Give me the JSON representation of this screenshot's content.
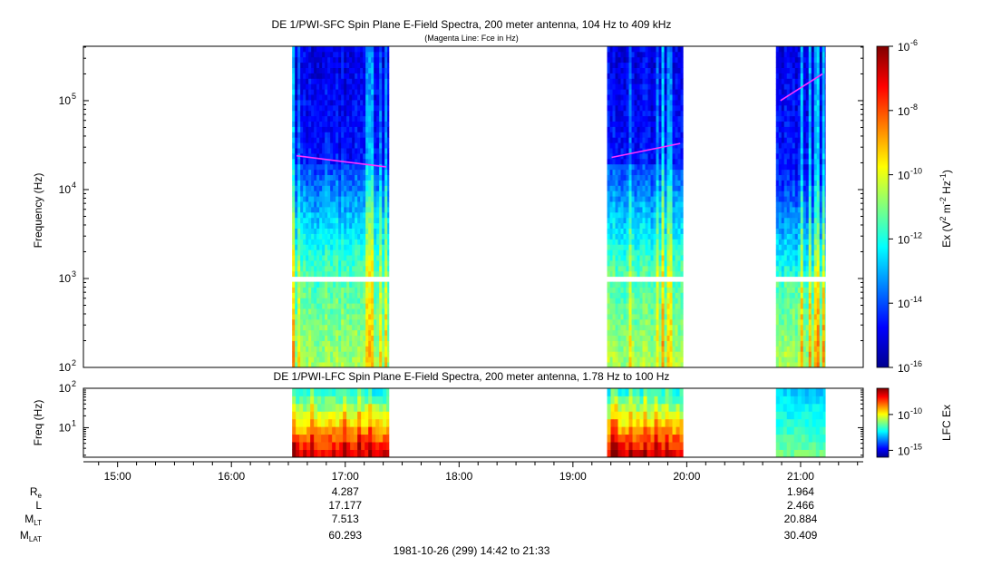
{
  "chart_data": [
    {
      "type": "heatmap",
      "title": "DE 1/PWI-SFC  Spin Plane E-Field Spectra, 200 meter antenna, 104 Hz to 409 kHz",
      "subtitle": "(Magenta Line: Fce in Hz)",
      "ylabel": "Frequency (Hz)",
      "yscale": "log",
      "ylim": [
        100,
        409000
      ],
      "ytick_labels": [
        {
          "base": "10",
          "exp": "2"
        },
        {
          "base": "10",
          "exp": "3"
        },
        {
          "base": "10",
          "exp": "4"
        },
        {
          "base": "10",
          "exp": "5"
        }
      ],
      "colorbar": {
        "label_parts": [
          "Ex (V",
          "2",
          " m",
          "-2",
          " Hz",
          "-1",
          ")"
        ],
        "scale": "log",
        "range": [
          1e-16,
          1e-06
        ],
        "tick_labels": [
          {
            "base": "10",
            "exp": "-6"
          },
          {
            "base": "10",
            "exp": "-8"
          },
          {
            "base": "10",
            "exp": "-10"
          },
          {
            "base": "10",
            "exp": "-12"
          },
          {
            "base": "10",
            "exp": "-14"
          },
          {
            "base": "10",
            "exp": "-16"
          }
        ]
      },
      "segments": [
        {
          "start": "16:32",
          "end": "17:23",
          "fce_start": 24000,
          "fce_end": 18000
        },
        {
          "start": "19:18",
          "end": "19:58",
          "fce_start": 23000,
          "fce_end": 33000
        },
        {
          "start": "20:47",
          "end": "21:13",
          "fce_start": 100000,
          "fce_end": 200000
        }
      ],
      "fce_color": "#ff33ff"
    },
    {
      "type": "heatmap",
      "title": "DE 1/PWI-LFC  Spin Plane E-Field Spectra, 200 meter antenna, 1.78 Hz to 100 Hz",
      "ylabel": "Freq (Hz)",
      "yscale": "log",
      "ylim": [
        1.78,
        100
      ],
      "ytick_labels": [
        {
          "base": "10",
          "exp": "1"
        },
        {
          "base": "10",
          "exp": "2"
        }
      ],
      "colorbar": {
        "label": "LFC Ex",
        "tick_labels": [
          {
            "base": "10",
            "exp": "-10"
          },
          {
            "base": "10",
            "exp": "-15"
          }
        ]
      }
    }
  ],
  "xaxis": {
    "range": [
      "14:42",
      "21:33"
    ],
    "tick_labels": [
      "15:00",
      "16:00",
      "17:00",
      "18:00",
      "19:00",
      "20:00",
      "21:00"
    ]
  },
  "ephemeris": [
    {
      "label": "R",
      "sub": "e",
      "values": [
        "4.287",
        "1.964"
      ]
    },
    {
      "label": "L",
      "sub": "",
      "values": [
        "17.177",
        "2.466"
      ]
    },
    {
      "label": "M",
      "sub": "LT",
      "values": [
        "7.513",
        "20.884"
      ]
    },
    {
      "label": "M",
      "sub": "LAT",
      "values": [
        "60.293",
        "30.409"
      ]
    }
  ],
  "ephemeris_times": [
    "17:00",
    "21:00"
  ],
  "footer": "1981-10-26 (299) 14:42 to 21:33"
}
